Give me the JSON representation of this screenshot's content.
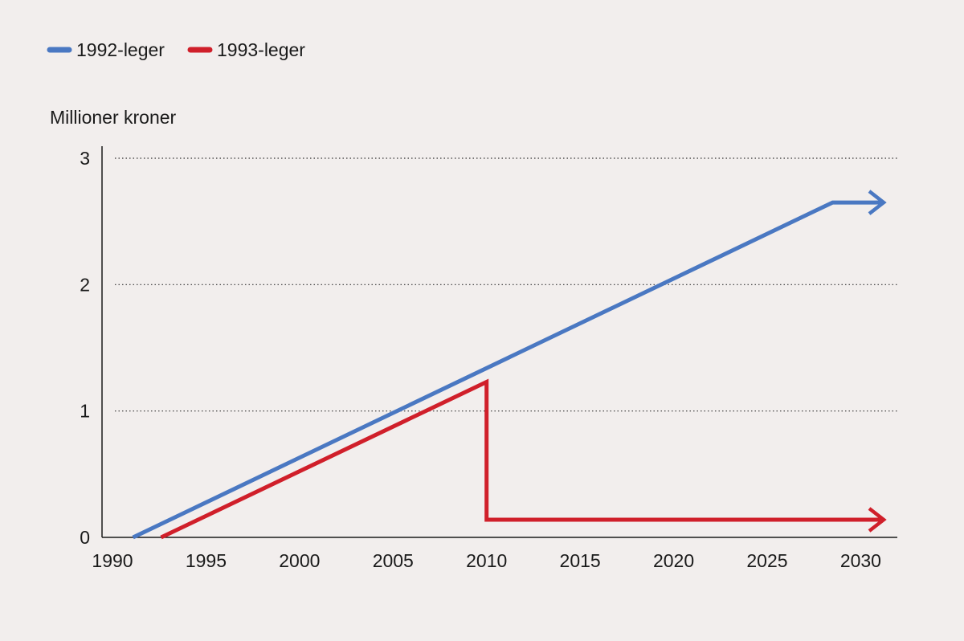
{
  "chart_data": {
    "type": "line",
    "title": "",
    "xlabel": "",
    "ylabel": "Millioner kroner",
    "xlim": [
      1990,
      2032
    ],
    "ylim": [
      0,
      3
    ],
    "x_ticks": [
      "1990",
      "1995",
      "2000",
      "2005",
      "2010",
      "2015",
      "2020",
      "2025",
      "2030"
    ],
    "y_ticks": [
      "0",
      "1",
      "2",
      "3"
    ],
    "grid": "horizontal-dotted",
    "legend_position": "top-left",
    "series": [
      {
        "name": "1992-leger",
        "color": "#4a78c2",
        "points": [
          [
            1991.1,
            0
          ],
          [
            2028.5,
            2.65
          ],
          [
            2030.8,
            2.65
          ]
        ],
        "arrow_end": true
      },
      {
        "name": "1993-leger",
        "color": "#d01f2a",
        "points": [
          [
            1992.6,
            0
          ],
          [
            2010,
            1.23
          ],
          [
            2010,
            0.14
          ],
          [
            2030.8,
            0.14
          ]
        ],
        "arrow_end": true
      }
    ]
  }
}
